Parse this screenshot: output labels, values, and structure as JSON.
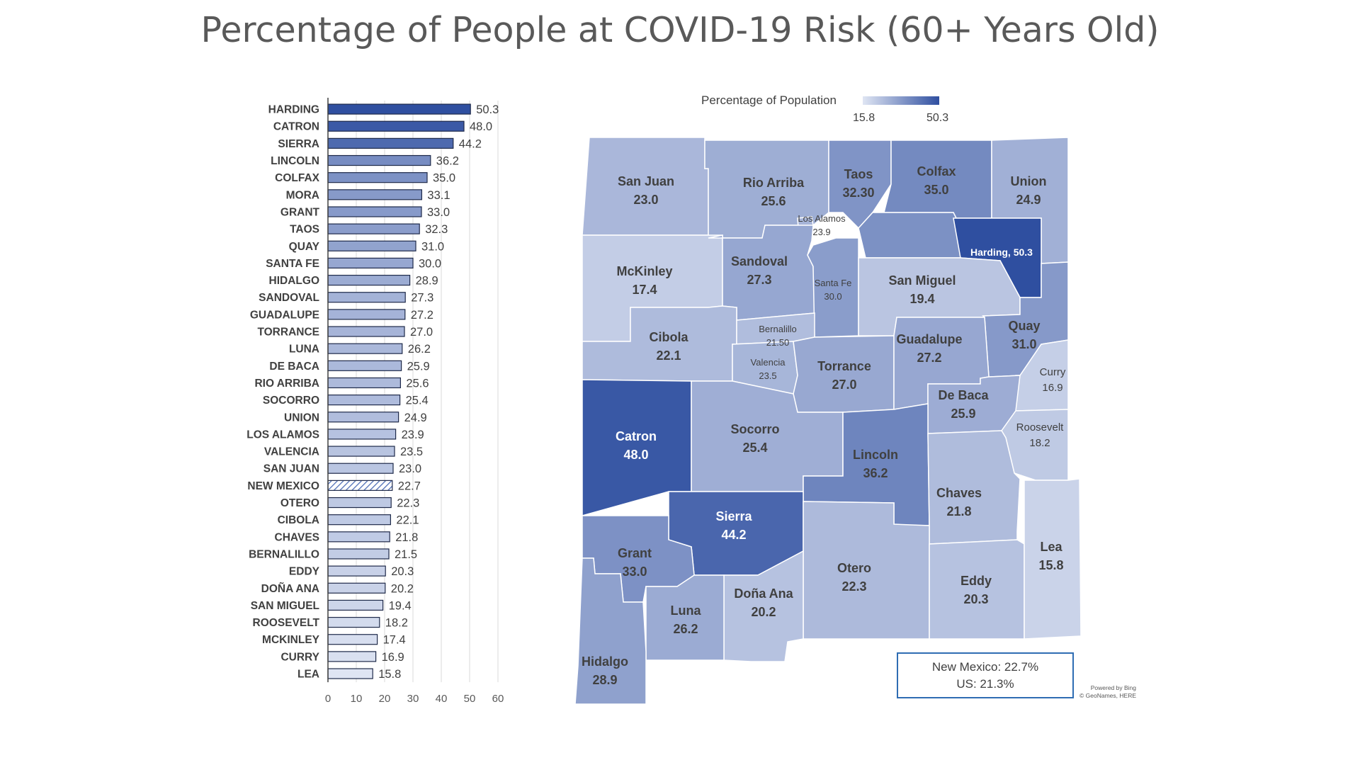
{
  "title": "Percentage of People at COVID-19 Risk (60+ Years Old)",
  "chart_data": [
    {
      "type": "bar",
      "orientation": "horizontal",
      "categories": [
        "HARDING",
        "CATRON",
        "SIERRA",
        "LINCOLN",
        "COLFAX",
        "MORA",
        "GRANT",
        "TAOS",
        "QUAY",
        "SANTA FE",
        "HIDALGO",
        "SANDOVAL",
        "GUADALUPE",
        "TORRANCE",
        "LUNA",
        "DE BACA",
        "RIO ARRIBA",
        "SOCORRO",
        "UNION",
        "LOS ALAMOS",
        "VALENCIA",
        "SAN JUAN",
        "NEW MEXICO",
        "OTERO",
        "CIBOLA",
        "CHAVES",
        "BERNALILLO",
        "EDDY",
        "DOÑA ANA",
        "SAN MIGUEL",
        "ROOSEVELT",
        "MCKINLEY",
        "CURRY",
        "LEA"
      ],
      "values": [
        50.3,
        48.0,
        44.2,
        36.2,
        35.0,
        33.1,
        33.0,
        32.3,
        31.0,
        30.0,
        28.9,
        27.3,
        27.2,
        27.0,
        26.2,
        25.9,
        25.6,
        25.4,
        24.9,
        23.9,
        23.5,
        23.0,
        22.7,
        22.3,
        22.1,
        21.8,
        21.5,
        20.3,
        20.2,
        19.4,
        18.2,
        17.4,
        16.9,
        15.8
      ],
      "value_labels": [
        "50.3",
        "48.0",
        "44.2",
        "36.2",
        "35.0",
        "33.1",
        "33.0",
        "32.3",
        "31.0",
        "30.0",
        "28.9",
        "27.3",
        "27.2",
        "27.0",
        "26.2",
        "25.9",
        "25.6",
        "25.4",
        "24.9",
        "23.9",
        "23.5",
        "23.0",
        "22.7",
        "22.3",
        "22.1",
        "21.8",
        "21.5",
        "20.3",
        "20.2",
        "19.4",
        "18.2",
        "17.4",
        "16.9",
        "15.8"
      ],
      "highlighted_category": "NEW MEXICO",
      "highlight_pattern": "diagonal-hatch",
      "xlim": [
        0,
        60
      ],
      "xticks": [
        "0",
        "10",
        "20",
        "30",
        "40",
        "50",
        "60"
      ],
      "xlabel": "",
      "ylabel": "",
      "grid": true,
      "color_min": "#dfe5f3",
      "color_max": "#2f4fa0",
      "outline_color": "#1f2a4a"
    },
    {
      "type": "choropleth",
      "legend": {
        "title": "Percentage of Population",
        "min_label": "15.8",
        "max_label": "50.3",
        "min": 15.8,
        "max": 50.3,
        "color_min": "#dfe5f3",
        "color_max": "#2f4fa0"
      },
      "regions": [
        {
          "id": "san-juan",
          "name": "San Juan",
          "value_label": "23.0",
          "value": 23.0
        },
        {
          "id": "rio-arriba",
          "name": "Rio Arriba",
          "value_label": "25.6",
          "value": 25.6
        },
        {
          "id": "taos",
          "name": "Taos",
          "value_label": "32.30",
          "value": 32.3
        },
        {
          "id": "colfax",
          "name": "Colfax",
          "value_label": "35.0",
          "value": 35.0
        },
        {
          "id": "union",
          "name": "Union",
          "value_label": "24.9",
          "value": 24.9
        },
        {
          "id": "los-alamos",
          "name": "Los Alamos",
          "value_label": "23.9",
          "value": 23.9
        },
        {
          "id": "mora",
          "name": "",
          "value_label": "",
          "value": 33.1
        },
        {
          "id": "harding",
          "name": "Harding, 50.3",
          "value_label": "",
          "value": 50.3
        },
        {
          "id": "mckinley",
          "name": "McKinley",
          "value_label": "17.4",
          "value": 17.4
        },
        {
          "id": "sandoval",
          "name": "Sandoval",
          "value_label": "27.3",
          "value": 27.3
        },
        {
          "id": "santa-fe",
          "name": "Santa Fe",
          "value_label": "30.0",
          "value": 30.0
        },
        {
          "id": "san-miguel",
          "name": "San Miguel",
          "value_label": "19.4",
          "value": 19.4
        },
        {
          "id": "quay",
          "name": "Quay",
          "value_label": "31.0",
          "value": 31.0
        },
        {
          "id": "cibola",
          "name": "Cibola",
          "value_label": "22.1",
          "value": 22.1
        },
        {
          "id": "bernalillo",
          "name": "Bernalillo",
          "value_label": "21.50",
          "value": 21.5
        },
        {
          "id": "valencia",
          "name": "Valencia",
          "value_label": "23.5",
          "value": 23.5
        },
        {
          "id": "torrance",
          "name": "Torrance",
          "value_label": "27.0",
          "value": 27.0
        },
        {
          "id": "guadalupe",
          "name": "Guadalupe",
          "value_label": "27.2",
          "value": 27.2
        },
        {
          "id": "curry",
          "name": "Curry",
          "value_label": "16.9",
          "value": 16.9
        },
        {
          "id": "de-baca",
          "name": "De Baca",
          "value_label": "25.9",
          "value": 25.9
        },
        {
          "id": "roosevelt",
          "name": "Roosevelt",
          "value_label": "18.2",
          "value": 18.2
        },
        {
          "id": "catron",
          "name": "Catron",
          "value_label": "48.0",
          "value": 48.0
        },
        {
          "id": "socorro",
          "name": "Socorro",
          "value_label": "25.4",
          "value": 25.4
        },
        {
          "id": "lincoln",
          "name": "Lincoln",
          "value_label": "36.2",
          "value": 36.2
        },
        {
          "id": "chaves",
          "name": "Chaves",
          "value_label": "21.8",
          "value": 21.8
        },
        {
          "id": "sierra",
          "name": "Sierra",
          "value_label": "44.2",
          "value": 44.2
        },
        {
          "id": "grant",
          "name": "Grant",
          "value_label": "33.0",
          "value": 33.0
        },
        {
          "id": "otero",
          "name": "Otero",
          "value_label": "22.3",
          "value": 22.3
        },
        {
          "id": "lea",
          "name": "Lea",
          "value_label": "15.8",
          "value": 15.8
        },
        {
          "id": "dona-ana",
          "name": "Doña Ana",
          "value_label": "20.2",
          "value": 20.2
        },
        {
          "id": "eddy",
          "name": "Eddy",
          "value_label": "20.3",
          "value": 20.3
        },
        {
          "id": "luna",
          "name": "Luna",
          "value_label": "26.2",
          "value": 26.2
        },
        {
          "id": "hidalgo",
          "name": "Hidalgo",
          "value_label": "28.9",
          "value": 28.9
        }
      ]
    }
  ],
  "summary": {
    "line1": "New Mexico:  22.7%",
    "line2": "US: 21.3%"
  },
  "attribution": {
    "line1": "Powered by Bing",
    "line2": "© GeoNames, HERE"
  }
}
